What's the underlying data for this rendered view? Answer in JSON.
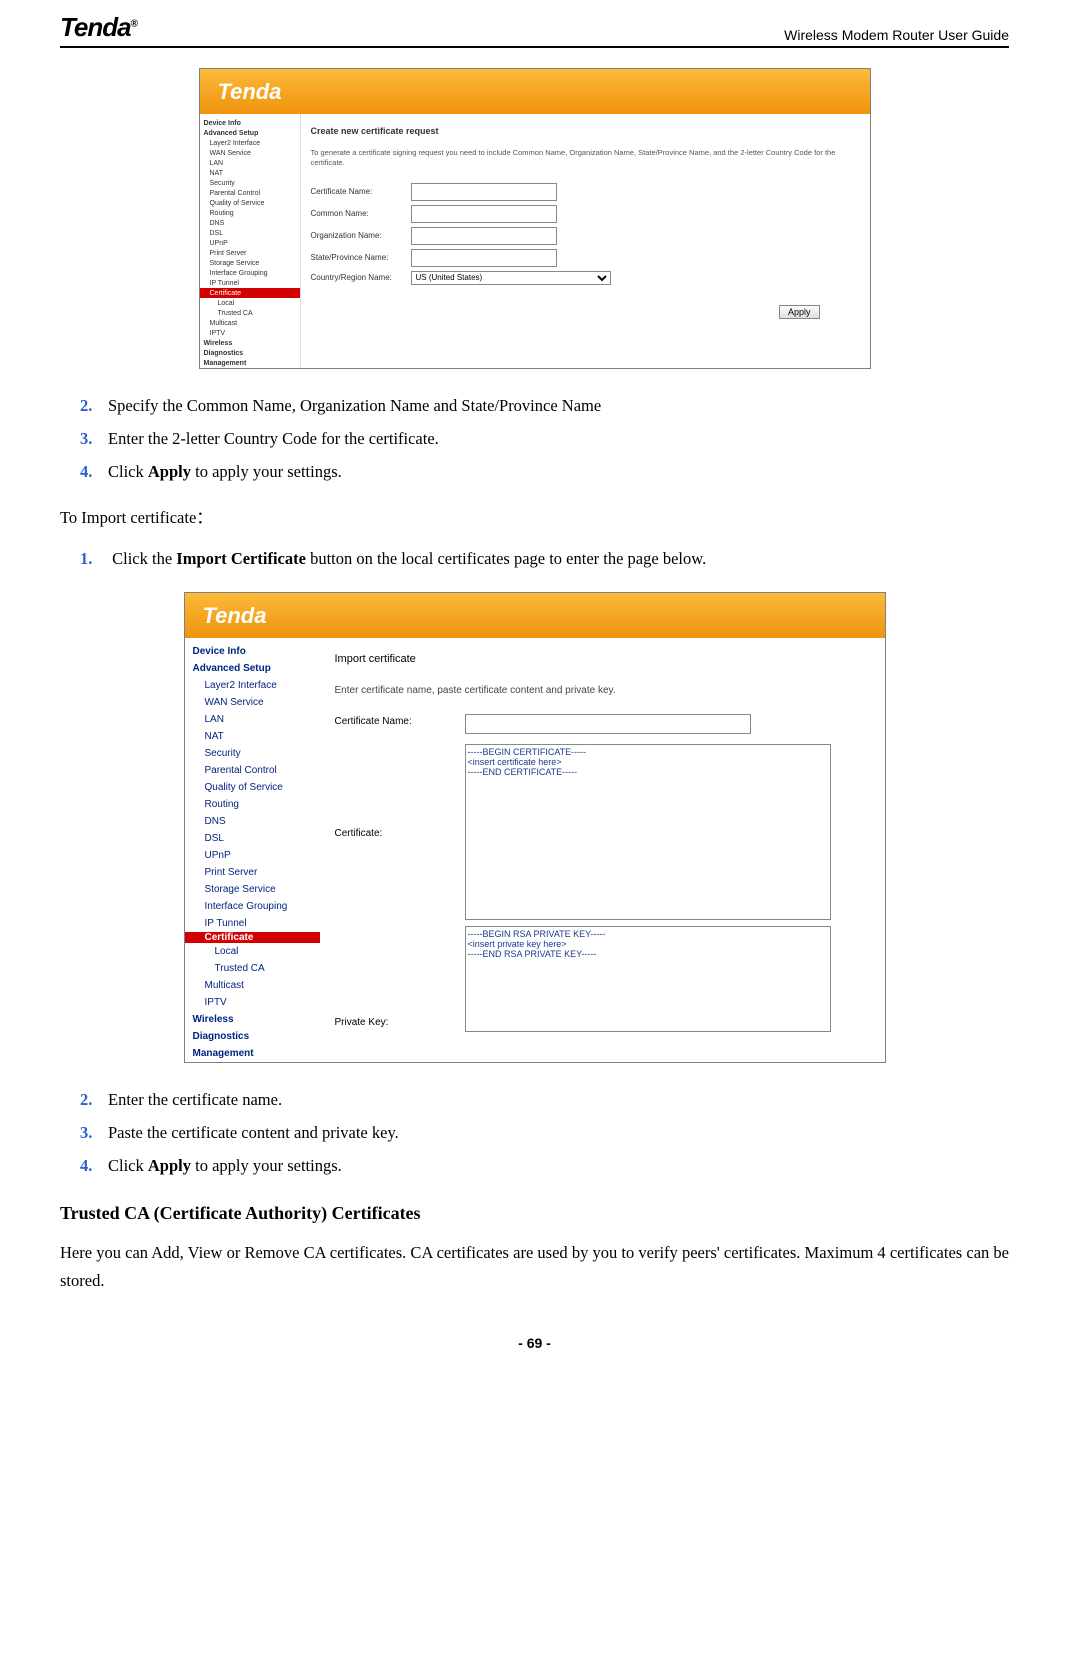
{
  "header": {
    "logo_text": "Tenda",
    "logo_sup": "®",
    "right_text": "Wireless Modem Router User Guide"
  },
  "colors": {
    "step_number": "#2962c9",
    "nav_highlight_bg": "#d20000",
    "nav_text": "#00247d",
    "header_gradient_top": "#fbbb3a",
    "header_gradient_bottom": "#f0930e"
  },
  "screenshot1": {
    "logo": "Tenda",
    "nav": [
      {
        "t": "Device Info",
        "lvl": 0
      },
      {
        "t": "Advanced Setup",
        "lvl": 0
      },
      {
        "t": "Layer2 Interface",
        "lvl": 1
      },
      {
        "t": "WAN Service",
        "lvl": 1
      },
      {
        "t": "LAN",
        "lvl": 1
      },
      {
        "t": "NAT",
        "lvl": 1
      },
      {
        "t": "Security",
        "lvl": 1
      },
      {
        "t": "Parental Control",
        "lvl": 1
      },
      {
        "t": "Quality of Service",
        "lvl": 1
      },
      {
        "t": "Routing",
        "lvl": 1
      },
      {
        "t": "DNS",
        "lvl": 1
      },
      {
        "t": "DSL",
        "lvl": 1
      },
      {
        "t": "UPnP",
        "lvl": 1
      },
      {
        "t": "Print Server",
        "lvl": 1
      },
      {
        "t": "Storage Service",
        "lvl": 1
      },
      {
        "t": "Interface Grouping",
        "lvl": 1
      },
      {
        "t": "IP Tunnel",
        "lvl": 1
      },
      {
        "t": "Certificate",
        "lvl": 1,
        "hl": true
      },
      {
        "t": "Local",
        "lvl": 2
      },
      {
        "t": "Trusted CA",
        "lvl": 2
      },
      {
        "t": "Multicast",
        "lvl": 1
      },
      {
        "t": "IPTV",
        "lvl": 1
      },
      {
        "t": "Wireless",
        "lvl": 0
      },
      {
        "t": "Diagnostics",
        "lvl": 0
      },
      {
        "t": "Management",
        "lvl": 0
      }
    ],
    "content_title": "Create new certificate request",
    "content_desc": "To generate a certificate signing request you need to include Common Name, Organization Name, State/Province Name, and the 2-letter Country Code for the certificate.",
    "fields": {
      "cert_name": "Certificate Name:",
      "common_name": "Common Name:",
      "org_name": "Organization Name:",
      "state": "State/Province Name:",
      "country": "Country/Region Name:",
      "country_value": "US (United States)"
    },
    "apply": "Apply"
  },
  "steps_block1": [
    {
      "n": "2.",
      "t": "Specify the Common Name, Organization Name and State/Province Name"
    },
    {
      "n": "3.",
      "t": "Enter the 2-letter Country Code for the certificate."
    },
    {
      "n": "4.",
      "pre": "Click ",
      "b": "Apply",
      "post": " to apply your settings."
    }
  ],
  "import_para": "To Import certificate：",
  "import_step": {
    "n": "1.",
    "pre": "Click the ",
    "b": "Import Certificate",
    "post": " button on the local certificates page to enter the page below."
  },
  "screenshot2": {
    "logo": "Tenda",
    "nav": [
      {
        "t": "Device Info",
        "cls": "nav-item"
      },
      {
        "t": "Advanced Setup",
        "cls": "nav-item"
      },
      {
        "t": "Layer2 Interface",
        "cls": "nav-item nav-sub"
      },
      {
        "t": "WAN Service",
        "cls": "nav-item nav-sub"
      },
      {
        "t": "LAN",
        "cls": "nav-item nav-sub"
      },
      {
        "t": "NAT",
        "cls": "nav-item nav-sub"
      },
      {
        "t": "Security",
        "cls": "nav-item nav-sub"
      },
      {
        "t": "Parental Control",
        "cls": "nav-item nav-sub"
      },
      {
        "t": "Quality of Service",
        "cls": "nav-item nav-sub"
      },
      {
        "t": "Routing",
        "cls": "nav-item nav-sub"
      },
      {
        "t": "DNS",
        "cls": "nav-item nav-sub"
      },
      {
        "t": "DSL",
        "cls": "nav-item nav-sub"
      },
      {
        "t": "UPnP",
        "cls": "nav-item nav-sub"
      },
      {
        "t": "Print Server",
        "cls": "nav-item nav-sub"
      },
      {
        "t": "Storage Service",
        "cls": "nav-item nav-sub"
      },
      {
        "t": "Interface Grouping",
        "cls": "nav-item nav-sub"
      },
      {
        "t": "IP Tunnel",
        "cls": "nav-item nav-sub"
      },
      {
        "t": "Certificate",
        "cls": "nav-hl"
      },
      {
        "t": "Local",
        "cls": "nav-item nav-sub2"
      },
      {
        "t": "Trusted CA",
        "cls": "nav-item nav-sub2"
      },
      {
        "t": "Multicast",
        "cls": "nav-item nav-sub"
      },
      {
        "t": "IPTV",
        "cls": "nav-item nav-sub"
      },
      {
        "t": "Wireless",
        "cls": "nav-item"
      },
      {
        "t": "Diagnostics",
        "cls": "nav-item"
      },
      {
        "t": "Management",
        "cls": "nav-item"
      }
    ],
    "title": "Import certificate",
    "desc": "Enter certificate name, paste certificate content and private key.",
    "cert_name_label": "Certificate Name:",
    "cert_label": "Certificate:",
    "cert_value": "-----BEGIN CERTIFICATE-----\n<insert certificate here>\n-----END CERTIFICATE-----",
    "pkey_label": "Private Key:",
    "pkey_value": "-----BEGIN RSA PRIVATE KEY-----\n<insert private key here>\n-----END RSA PRIVATE KEY-----"
  },
  "steps_block2": [
    {
      "n": "2.",
      "t": "Enter the certificate name."
    },
    {
      "n": "3.",
      "t": "Paste the certificate content and private key."
    },
    {
      "n": "4.",
      "pre": "Click ",
      "b": "Apply",
      "post": " to apply your settings."
    }
  ],
  "section_heading": "Trusted CA (Certificate Authority) Certificates",
  "section_para": "Here you can Add, View or Remove CA certificates. CA certificates are used by you to verify peers' certificates. Maximum 4 certificates can be stored.",
  "footer": "- 69 -"
}
